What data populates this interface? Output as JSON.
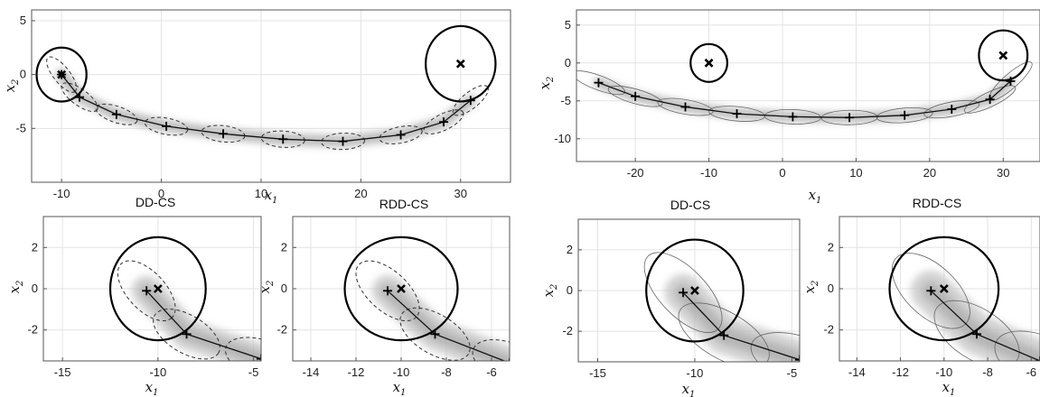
{
  "chart_data": [
    {
      "id": "left-main",
      "type": "line",
      "title": "",
      "xlabel": "x",
      "xlabel_sub": "1",
      "ylabel": "x",
      "ylabel_sub": "2",
      "xlim": [
        -13,
        35
      ],
      "ylim": [
        -10,
        6
      ],
      "xticks": [
        "-10",
        "0",
        "10",
        "20",
        "30"
      ],
      "xtick_values": [
        -10,
        0,
        10,
        20,
        30
      ],
      "yticks": [
        "5",
        "0",
        "-5"
      ],
      "ytick_values": [
        5,
        0,
        -5
      ],
      "grid": true,
      "ellipse_style": "dashed",
      "series": [
        {
          "x": [
            -10,
            -8.2,
            -4.5,
            0.5,
            6.2,
            12.2,
            18.2,
            24,
            28.3,
            31
          ],
          "y": [
            0,
            -2.1,
            -3.7,
            -4.8,
            -5.5,
            -6.0,
            -6.2,
            -5.6,
            -4.4,
            -2.4
          ]
        }
      ],
      "start": {
        "x": -10,
        "y": 0,
        "r": 2.5
      },
      "goal": {
        "x": 30,
        "y": 1,
        "r": 3.5
      }
    },
    {
      "id": "right-main",
      "type": "line",
      "title": "",
      "xlabel": "x",
      "xlabel_sub": "1",
      "ylabel": "x",
      "ylabel_sub": "2",
      "xlim": [
        -28,
        35
      ],
      "ylim": [
        -13,
        7
      ],
      "xticks": [
        "-20",
        "-10",
        "0",
        "10",
        "20",
        "30"
      ],
      "xtick_values": [
        -20,
        -10,
        0,
        10,
        20,
        30
      ],
      "yticks": [
        "5",
        "0",
        "-5",
        "-10"
      ],
      "ytick_values": [
        5,
        0,
        -5,
        -10
      ],
      "grid": true,
      "ellipse_style": "solid",
      "series": [
        {
          "x": [
            -25,
            -20,
            -13.2,
            -6.2,
            1.4,
            9.1,
            16.6,
            23,
            28.2,
            31
          ],
          "y": [
            -2.6,
            -4.4,
            -5.8,
            -6.7,
            -7.1,
            -7.2,
            -6.9,
            -6.1,
            -4.8,
            -2.4
          ]
        }
      ],
      "start": {
        "x": -10,
        "y": 0,
        "r": 2.5
      },
      "goal": {
        "x": 30,
        "y": 1,
        "r": 3.3
      }
    },
    {
      "id": "left-dd",
      "type": "line",
      "title": "DD-CS",
      "xlabel": "x",
      "xlabel_sub": "1",
      "ylabel": "x",
      "ylabel_sub": "2",
      "xlim": [
        -16,
        -4.6
      ],
      "ylim": [
        -3.5,
        3.5
      ],
      "xticks": [
        "-15",
        "-10",
        "-5"
      ],
      "xtick_values": [
        -15,
        -10,
        -5
      ],
      "yticks": [
        "2",
        "0",
        "-2"
      ],
      "ytick_values": [
        2,
        0,
        -2
      ],
      "grid": true,
      "ellipse_style": "dashed",
      "series": [
        {
          "x": [
            -10.6,
            -8.5,
            -4.6
          ],
          "y": [
            -0.1,
            -2.2,
            -3.4
          ]
        }
      ],
      "start": {
        "x": -10,
        "y": 0,
        "r": 2.5
      }
    },
    {
      "id": "left-rdd",
      "type": "line",
      "title": "RDD-CS",
      "xlabel": "x",
      "xlabel_sub": "1",
      "ylabel": "x",
      "ylabel_sub": "2",
      "xlim": [
        -14.8,
        -5.2
      ],
      "ylim": [
        -3.5,
        3.5
      ],
      "xticks": [
        "-14",
        "-12",
        "-10",
        "-8",
        "-6"
      ],
      "xtick_values": [
        -14,
        -12,
        -10,
        -8,
        -6
      ],
      "yticks": [
        "2",
        "0",
        "-2"
      ],
      "ytick_values": [
        2,
        0,
        -2
      ],
      "grid": true,
      "ellipse_style": "dashed",
      "series": [
        {
          "x": [
            -10.6,
            -8.5,
            -5.2
          ],
          "y": [
            -0.1,
            -2.2,
            -3.6
          ]
        }
      ],
      "start": {
        "x": -10,
        "y": 0,
        "r": 2.5
      }
    },
    {
      "id": "right-dd",
      "type": "line",
      "title": "DD-CS",
      "xlabel": "x",
      "xlabel_sub": "1",
      "ylabel": "x",
      "ylabel_sub": "2",
      "xlim": [
        -16,
        -4.6
      ],
      "ylim": [
        -3.5,
        3.5
      ],
      "xticks": [
        "-15",
        "-10",
        "-5"
      ],
      "xtick_values": [
        -15,
        -10,
        -5
      ],
      "yticks": [
        "2",
        "0",
        "-2"
      ],
      "ytick_values": [
        2,
        0,
        -2
      ],
      "grid": true,
      "ellipse_style": "solid",
      "series": [
        {
          "x": [
            -10.6,
            -8.5,
            -4.6
          ],
          "y": [
            -0.1,
            -2.2,
            -3.4
          ]
        }
      ],
      "start": {
        "x": -10,
        "y": 0,
        "r": 2.5
      }
    },
    {
      "id": "right-rdd",
      "type": "line",
      "title": "RDD-CS",
      "xlabel": "x",
      "xlabel_sub": "1",
      "ylabel": "x",
      "ylabel_sub": "2",
      "xlim": [
        -14.8,
        -5.6
      ],
      "ylim": [
        -3.5,
        3.5
      ],
      "xticks": [
        "-14",
        "-12",
        "-10",
        "-8",
        "-6"
      ],
      "xtick_values": [
        -14,
        -12,
        -10,
        -8,
        -6
      ],
      "yticks": [
        "2",
        "0",
        "-2"
      ],
      "ytick_values": [
        2,
        0,
        -2
      ],
      "grid": true,
      "ellipse_style": "solid",
      "series": [
        {
          "x": [
            -10.6,
            -8.5,
            -5.6
          ],
          "y": [
            -0.1,
            -2.2,
            -3.5
          ]
        }
      ],
      "start": {
        "x": -10,
        "y": 0,
        "r": 2.5
      }
    }
  ]
}
